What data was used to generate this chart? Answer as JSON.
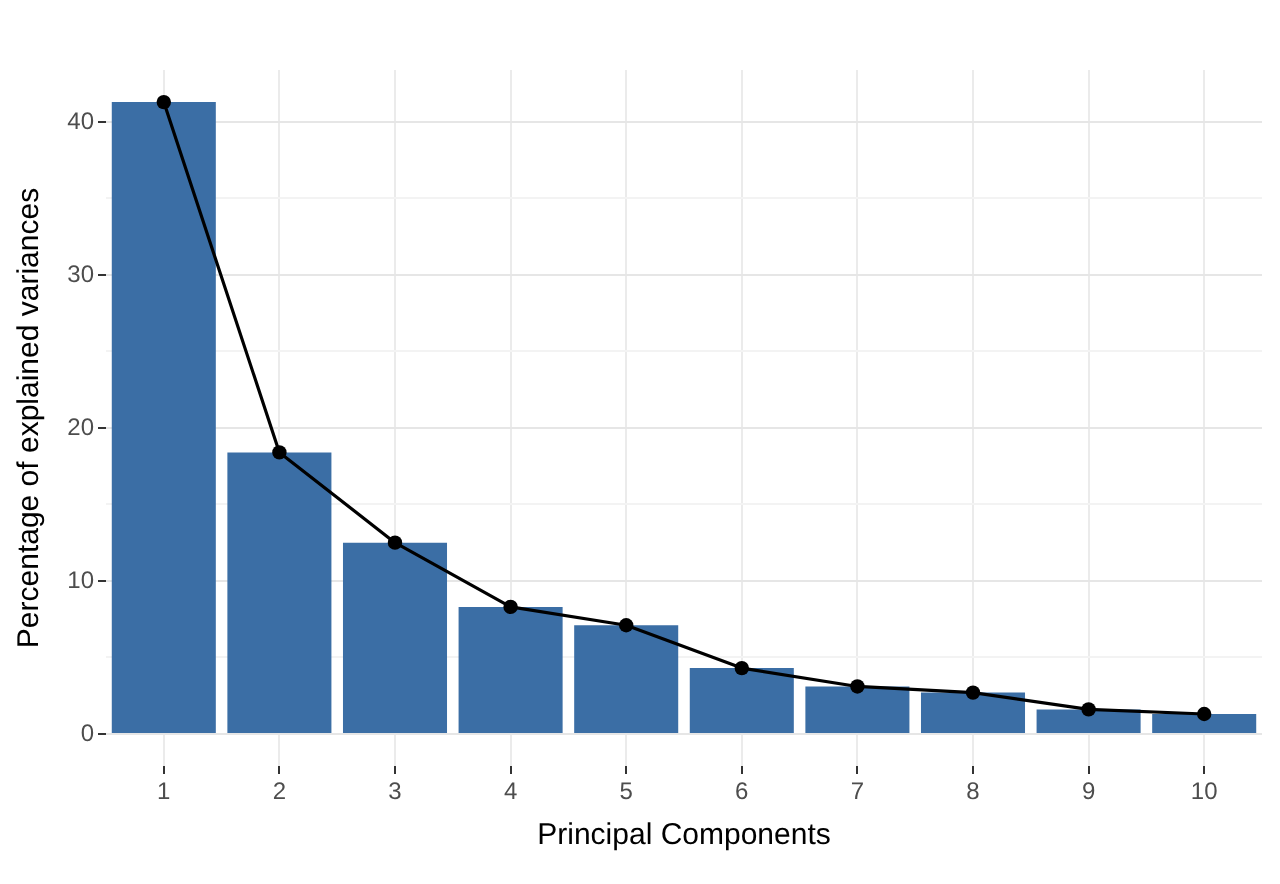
{
  "chart_data": {
    "type": "bar",
    "xlabel": "Principal Components",
    "ylabel": "Percentage of explained variances",
    "categories": [
      "1",
      "2",
      "3",
      "4",
      "5",
      "6",
      "7",
      "8",
      "9",
      "10"
    ],
    "series": [
      {
        "type": "bar",
        "color": "#3b6ea5",
        "values": [
          41.3,
          18.4,
          12.5,
          8.3,
          7.1,
          4.3,
          3.1,
          2.7,
          1.6,
          1.3
        ]
      },
      {
        "type": "line",
        "color": "#000000",
        "values": [
          41.3,
          18.4,
          12.5,
          8.3,
          7.1,
          4.3,
          3.1,
          2.7,
          1.6,
          1.3
        ]
      }
    ],
    "ylim": [
      -2.1,
      43.4
    ],
    "yticks": [
      0,
      {
        "value": 5,
        "label": null
      },
      10,
      {
        "value": 15,
        "label": null
      },
      20,
      {
        "value": 25,
        "label": null
      },
      30,
      {
        "value": 35,
        "label": null
      },
      40
    ],
    "grid": true,
    "marker": "circle"
  }
}
